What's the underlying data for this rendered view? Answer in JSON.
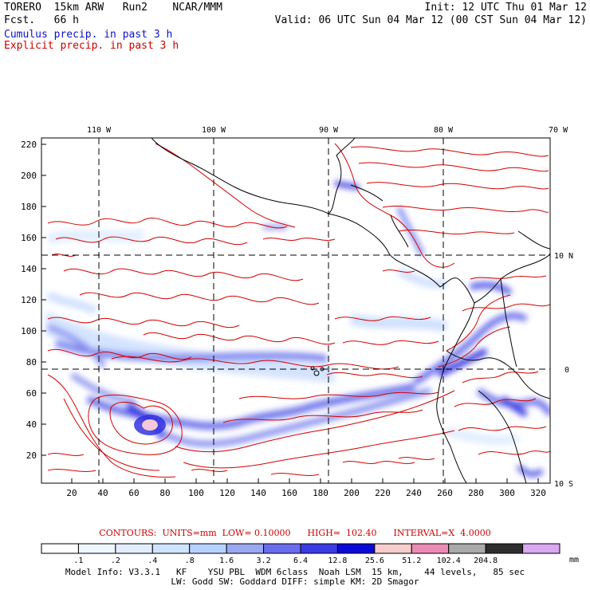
{
  "header": {
    "line1_left": "TORERO  15km ARW   Run2    NCAR/MMM",
    "line1_right": "Init: 12 UTC Thu 01 Mar 12",
    "line2_left": "Fcst.   66 h",
    "line2_right": "Valid: 06 UTC Sun 04 Mar 12 (00 CST Sun 04 Mar 12)",
    "cumulus_label": "Cumulus precip. in past 3 h",
    "explicit_label": "Explicit precip. in past 3 h"
  },
  "map": {
    "lon_labels": [
      "110 W",
      "100 W",
      "90 W",
      "80 W",
      "70 W"
    ],
    "lat_labels": [
      "10 N",
      "0",
      "10 S"
    ],
    "y_ticks": [
      "220",
      "200",
      "180",
      "160",
      "140",
      "120",
      "100",
      "80",
      "60",
      "40",
      "20"
    ],
    "x_ticks": [
      "20",
      "40",
      "60",
      "80",
      "100",
      "120",
      "140",
      "160",
      "180",
      "200",
      "220",
      "240",
      "260",
      "280",
      "300",
      "320"
    ]
  },
  "contours": {
    "text": "CONTOURS:  UNITS=mm  LOW= 0.10000      HIGH=  102.40      INTERVAL=X  4.0000"
  },
  "colorbar": {
    "unit": "mm",
    "labels": [
      ".1",
      ".2",
      ".4",
      ".8",
      "1.6",
      "3.2",
      "6.4",
      "12.8",
      "25.6",
      "51.2",
      "102.4",
      "204.8"
    ],
    "colors": [
      "#ffffff",
      "#f0f6ff",
      "#e2eeff",
      "#d0e4ff",
      "#b6d2ff",
      "#9aa8f2",
      "#6a6cf0",
      "#3a3ae6",
      "#0a0ad8",
      "#f6cccc",
      "#ec8cb4",
      "#aaaaaa",
      "#2e2e2e",
      "#d8a8f0"
    ]
  },
  "model_info": {
    "line1": "Model Info: V3.3.1   KF    YSU PBL  WDM 6class  Noah LSM  15 km,    44 levels,   85 sec",
    "line2": "LW: Godd SW: Goddard DIFF: simple KM: 2D Smagor"
  },
  "colors": {
    "cumulus": "#1010cc",
    "explicit": "#cc0000"
  }
}
